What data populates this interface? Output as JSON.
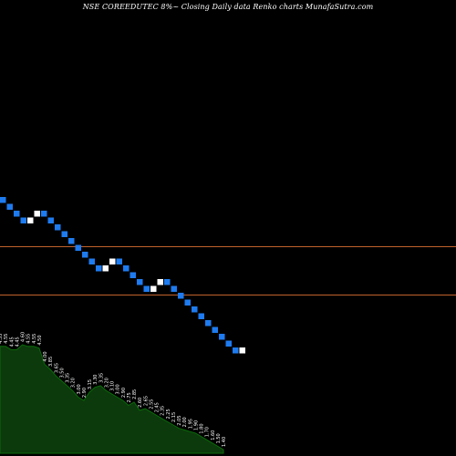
{
  "title": "NSE COREEDUTEC 8%~  Closing Daily data  Renko  charts MunafaSutra.com",
  "colors": {
    "background": "#000000",
    "up_brick": "#ffffff",
    "down_brick": "#1e7bf0",
    "hline": "#c0622c",
    "volume_fill": "#0c3a0c",
    "volume_line": "#0a6a0a",
    "label": "#ffffff"
  },
  "chart_data": {
    "type": "renko",
    "title": "NSE COREEDUTEC 8%~  Closing Daily data  Renko  charts MunafaSutra.com",
    "brick_directions": [
      "down",
      "down",
      "down",
      "down",
      "up",
      "up",
      "down",
      "down",
      "down",
      "down",
      "down",
      "down",
      "down",
      "down",
      "down",
      "up",
      "up",
      "down",
      "down",
      "down",
      "down",
      "down",
      "up",
      "up",
      "down",
      "down",
      "down",
      "down",
      "down",
      "down",
      "down",
      "down",
      "down",
      "down",
      "down",
      "up"
    ],
    "horizontal_lines": [
      "upper",
      "lower"
    ],
    "bottom_labels": [
      "4.55",
      "4.55",
      "4.45",
      "4.45",
      "4.60",
      "4.55",
      "4.55",
      "4.50",
      "4.00",
      "3.85",
      "3.65",
      "3.50",
      "3.35",
      "3.20",
      "3.00",
      "2.90",
      "3.15",
      "3.30",
      "3.35",
      "3.20",
      "3.10",
      "3.00",
      "2.90",
      "2.75",
      "2.85",
      "2.60",
      "2.65",
      "2.55",
      "2.45",
      "2.35",
      "2.25",
      "2.15",
      "2.05",
      "2.00",
      "1.95",
      "1.90",
      "1.80",
      "1.70",
      "1.60",
      "1.50",
      "1.40"
    ]
  }
}
